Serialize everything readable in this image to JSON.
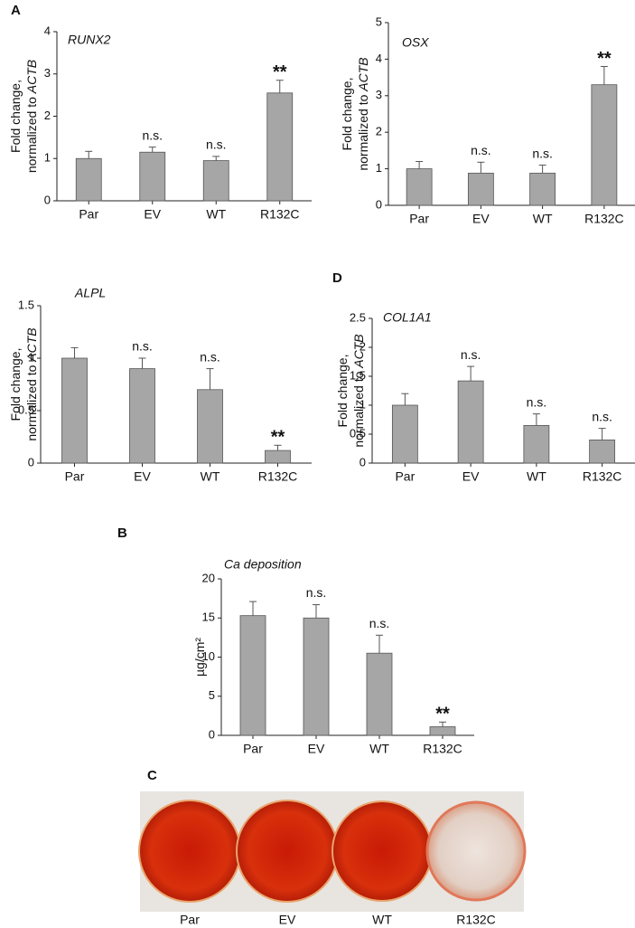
{
  "chart_data": [
    {
      "type": "bar",
      "panel": "A",
      "title": "RUNX2",
      "ylabel": [
        "Fold change,",
        "normalized to ",
        "ACTB"
      ],
      "categories": [
        "Par",
        "EV",
        "WT",
        "R132C"
      ],
      "values": [
        1.0,
        1.15,
        0.95,
        2.55
      ],
      "errors": [
        0.17,
        0.12,
        0.1,
        0.3
      ],
      "annotations": [
        null,
        "n.s.",
        "n.s.",
        "**"
      ],
      "color": "#a6a6a6",
      "ylim": [
        0,
        4
      ],
      "yticks": [
        0,
        1,
        2,
        3,
        4
      ]
    },
    {
      "type": "bar",
      "title": "OSX",
      "ylabel": [
        "Fold change,",
        "normalized to ",
        "ACTB"
      ],
      "categories": [
        "Par",
        "EV",
        "WT",
        "R132C"
      ],
      "values": [
        1.0,
        0.88,
        0.88,
        3.3
      ],
      "errors": [
        0.2,
        0.3,
        0.22,
        0.5
      ],
      "annotations": [
        null,
        "n.s.",
        "n.s.",
        "**"
      ],
      "color": "#a6a6a6",
      "ylim": [
        0,
        5
      ],
      "yticks": [
        0,
        1,
        2,
        3,
        4,
        5
      ]
    },
    {
      "type": "bar",
      "title": "ALPL",
      "ylabel": [
        "Fold change,",
        "normalized to ",
        "ACTB"
      ],
      "categories": [
        "Par",
        "EV",
        "WT",
        "R132C"
      ],
      "values": [
        1.0,
        0.9,
        0.7,
        0.12
      ],
      "errors": [
        0.1,
        0.1,
        0.2,
        0.05
      ],
      "annotations": [
        null,
        "n.s.",
        "n.s.",
        "**"
      ],
      "color": "#a6a6a6",
      "ylim": [
        0,
        1.5
      ],
      "yticks": [
        0,
        0.5,
        1,
        1.5
      ]
    },
    {
      "type": "bar",
      "panel": "D",
      "title": "COL1A1",
      "ylabel": [
        "Fold change,",
        "normalized to ",
        "ACTB"
      ],
      "categories": [
        "Par",
        "EV",
        "WT",
        "R132C"
      ],
      "values": [
        1.0,
        1.42,
        0.65,
        0.4
      ],
      "errors": [
        0.2,
        0.25,
        0.2,
        0.2
      ],
      "annotations": [
        null,
        "n.s.",
        "n.s.",
        "n.s."
      ],
      "color": "#a6a6a6",
      "ylim": [
        0,
        2.5
      ],
      "yticks": [
        0,
        0.5,
        1,
        1.5,
        2,
        2.5
      ]
    },
    {
      "type": "bar",
      "panel": "B",
      "title": "Ca deposition",
      "ylabel": [
        "µg/cm²"
      ],
      "categories": [
        "Par",
        "EV",
        "WT",
        "R132C"
      ],
      "values": [
        15.3,
        15.0,
        10.5,
        1.1
      ],
      "errors": [
        1.8,
        1.7,
        2.3,
        0.6
      ],
      "annotations": [
        null,
        "n.s.",
        "n.s.",
        "**"
      ],
      "color": "#a6a6a6",
      "ylim": [
        0,
        20
      ],
      "yticks": [
        0,
        5,
        10,
        15,
        20
      ]
    },
    {
      "type": "photos",
      "panel": "C",
      "captions": [
        "Par",
        "EV",
        "WT",
        "R132C"
      ]
    }
  ]
}
